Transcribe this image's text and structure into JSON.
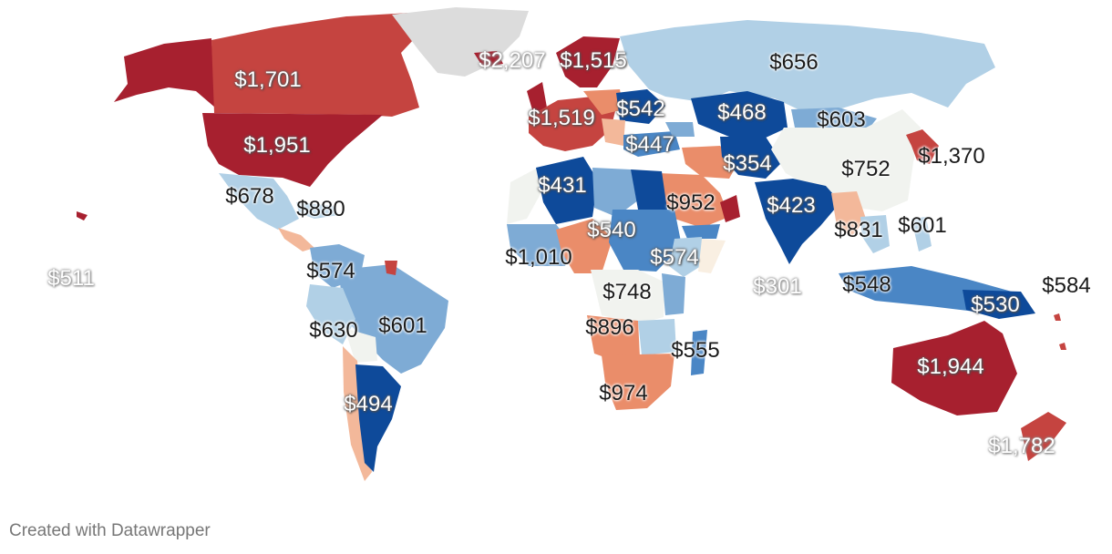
{
  "credit": "Created with Datawrapper",
  "colors": {
    "dark_red": "#a7202f",
    "red": "#c54440",
    "salmon": "#ea8d6a",
    "light_salmon": "#f3b89a",
    "neutral": "#f1f3ef",
    "light_blue": "#b1d0e6",
    "mid_blue": "#7eabd5",
    "blue": "#4a86c5",
    "dark_blue": "#0e4a9a",
    "no_data": "#dcdcdc"
  },
  "labels": {
    "greenland": "$2,207",
    "canada": "$1,701",
    "usa": "$1,951",
    "mexico": "$678",
    "cuba": "$880",
    "pacific": "$511",
    "colombia": "$574",
    "peru": "$630",
    "brazil": "$601",
    "argentina": "$494",
    "scandinavia": "$1,515",
    "western_europe": "$1,519",
    "ukraine": "$542",
    "turkey": "$447",
    "russia": "$656",
    "kazakhstan": "$468",
    "mongolia": "$603",
    "iran": "$354",
    "china": "$752",
    "japan": "$1,370",
    "algeria": "$431",
    "saudi_arabia": "$952",
    "india": "$423",
    "sudan": "$540",
    "myanmar": "$831",
    "philippines": "$601",
    "nigeria": "$1,010",
    "ethiopia": "$574",
    "indian_ocean": "$301",
    "indonesia": "$548",
    "papua": "$530",
    "pacific_islands": "$584",
    "drc": "$748",
    "angola": "$896",
    "madagascar": "$555",
    "south_africa": "$974",
    "australia": "$1,944",
    "new_zealand": "$1,782"
  }
}
